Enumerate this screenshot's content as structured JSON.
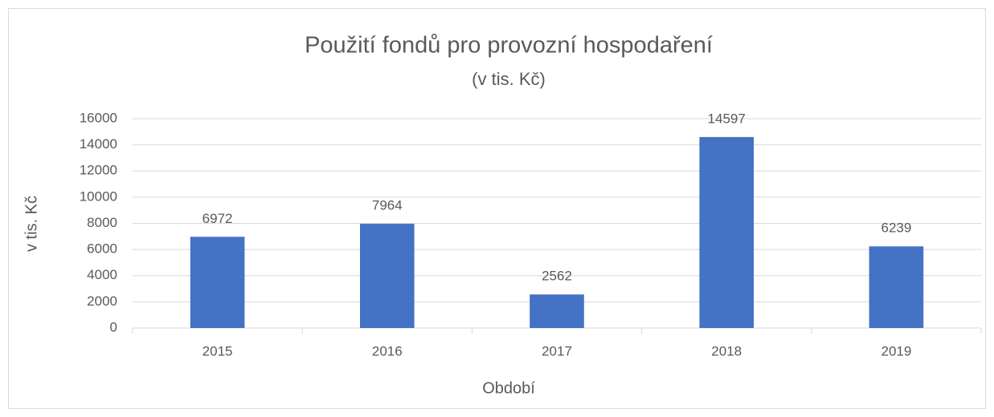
{
  "chart_data": {
    "type": "bar",
    "title": "Použití fondů pro provozní hospodaření",
    "subtitle": "(v tis. Kč)",
    "x_label": "Období",
    "y_label": "v tis. Kč",
    "categories": [
      "2015",
      "2016",
      "2017",
      "2018",
      "2019"
    ],
    "values": [
      6972,
      7964,
      2562,
      14597,
      6239
    ],
    "color": "#4472c4",
    "ylim": [
      0,
      16000
    ],
    "yticks": [
      0,
      2000,
      4000,
      6000,
      8000,
      10000,
      12000,
      14000,
      16000
    ],
    "grid": true
  }
}
